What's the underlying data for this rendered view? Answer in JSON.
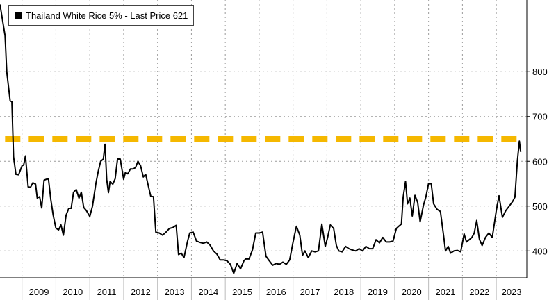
{
  "legend": {
    "label": "Thailand White Rice 5% - Last Price 621",
    "swatch_color": "#000000"
  },
  "colors": {
    "line": "#000000",
    "reference_line": "#F5B800",
    "grid": "#9a9a9a",
    "background": "#ffffff"
  },
  "chart_data": {
    "type": "line",
    "title": "",
    "xlabel": "",
    "ylabel": "",
    "xlim": [
      2008.35,
      2023.9
    ],
    "ylim": [
      340,
      960
    ],
    "y_ticks": [
      400,
      500,
      600,
      700,
      800
    ],
    "x_ticks": [
      "2009",
      "2010",
      "2011",
      "2012",
      "2013",
      "2014",
      "2015",
      "2016",
      "2017",
      "2018",
      "2019",
      "2020",
      "2021",
      "2022",
      "2023"
    ],
    "grid": true,
    "y_axis_position": "right",
    "series": [
      {
        "name": "Thailand White Rice 5%",
        "last_value": 621,
        "x": [
          2008.35,
          2008.5,
          2008.55,
          2008.65,
          2008.7,
          2008.75,
          2008.82,
          2008.9,
          2009.0,
          2009.05,
          2009.1,
          2009.18,
          2009.25,
          2009.32,
          2009.4,
          2009.45,
          2009.52,
          2009.58,
          2009.65,
          2009.72,
          2009.78,
          2009.85,
          2009.92,
          2010.0,
          2010.08,
          2010.15,
          2010.22,
          2010.3,
          2010.38,
          2010.45,
          2010.52,
          2010.6,
          2010.68,
          2010.75,
          2010.82,
          2010.9,
          2011.0,
          2011.08,
          2011.18,
          2011.25,
          2011.32,
          2011.4,
          2011.45,
          2011.5,
          2011.55,
          2011.6,
          2011.68,
          2011.75,
          2011.82,
          2011.9,
          2012.0,
          2012.05,
          2012.12,
          2012.2,
          2012.28,
          2012.35,
          2012.42,
          2012.5,
          2012.58,
          2012.65,
          2012.72,
          2012.8,
          2012.88,
          2012.95,
          2013.05,
          2013.15,
          2013.25,
          2013.35,
          2013.45,
          2013.55,
          2013.62,
          2013.7,
          2013.78,
          2013.88,
          2013.95,
          2014.05,
          2014.15,
          2014.25,
          2014.35,
          2014.45,
          2014.55,
          2014.65,
          2014.75,
          2014.85,
          2014.95,
          2015.05,
          2015.15,
          2015.25,
          2015.35,
          2015.45,
          2015.55,
          2015.6,
          2015.7,
          2015.8,
          2015.9,
          2016.0,
          2016.1,
          2016.2,
          2016.3,
          2016.4,
          2016.5,
          2016.6,
          2016.7,
          2016.8,
          2016.9,
          2017.0,
          2017.1,
          2017.2,
          2017.28,
          2017.35,
          2017.45,
          2017.55,
          2017.65,
          2017.75,
          2017.85,
          2017.95,
          2018.02,
          2018.1,
          2018.2,
          2018.28,
          2018.35,
          2018.45,
          2018.55,
          2018.65,
          2018.75,
          2018.85,
          2018.95,
          2019.05,
          2019.15,
          2019.25,
          2019.35,
          2019.45,
          2019.55,
          2019.65,
          2019.75,
          2019.85,
          2019.95,
          2020.05,
          2020.12,
          2020.2,
          2020.25,
          2020.32,
          2020.38,
          2020.45,
          2020.52,
          2020.6,
          2020.68,
          2020.75,
          2020.85,
          2020.92,
          2021.0,
          2021.08,
          2021.15,
          2021.25,
          2021.35,
          2021.45,
          2021.5,
          2021.58,
          2021.65,
          2021.75,
          2021.85,
          2021.95,
          2022.05,
          2022.12,
          2022.2,
          2022.28,
          2022.35,
          2022.42,
          2022.5,
          2022.58,
          2022.68,
          2022.78,
          2022.88,
          2022.95,
          2023.0,
          2023.08,
          2023.18,
          2023.28,
          2023.38,
          2023.48,
          2023.55,
          2023.62,
          2023.68,
          2023.72
        ],
        "values": [
          950,
          880,
          800,
          735,
          733,
          610,
          571,
          570,
          590,
          592,
          612,
          543,
          542,
          552,
          549,
          518,
          521,
          496,
          558,
          560,
          561,
          515,
          480,
          451,
          447,
          458,
          435,
          480,
          495,
          495,
          531,
          537,
          518,
          531,
          497,
          490,
          477,
          500,
          551,
          578,
          600,
          605,
          638,
          560,
          530,
          555,
          549,
          561,
          605,
          605,
          560,
          575,
          572,
          583,
          583,
          586,
          600,
          590,
          565,
          571,
          548,
          522,
          521,
          442,
          440,
          435,
          442,
          450,
          452,
          457,
          392,
          395,
          385,
          420,
          440,
          442,
          422,
          419,
          417,
          420,
          413,
          400,
          393,
          380,
          380,
          378,
          370,
          350,
          372,
          360,
          378,
          382,
          382,
          402,
          440,
          440,
          442,
          388,
          378,
          368,
          372,
          370,
          375,
          370,
          380,
          420,
          455,
          435,
          390,
          400,
          385,
          400,
          398,
          400,
          460,
          410,
          430,
          458,
          450,
          412,
          400,
          398,
          410,
          405,
          402,
          400,
          405,
          400,
          410,
          405,
          405,
          425,
          418,
          430,
          420,
          420,
          422,
          450,
          455,
          460,
          520,
          555,
          505,
          518,
          478,
          524,
          508,
          465,
          502,
          520,
          550,
          550,
          505,
          493,
          488,
          430,
          400,
          410,
          395,
          400,
          401,
          398,
          438,
          420,
          425,
          430,
          440,
          468,
          426,
          412,
          430,
          440,
          430,
          465,
          490,
          523,
          475,
          490,
          500,
          510,
          520,
          600,
          645,
          621
        ]
      }
    ],
    "reference_line": {
      "value": 650,
      "x_start": 2008.5,
      "x_end": 2023.65,
      "style": "dashed"
    }
  }
}
